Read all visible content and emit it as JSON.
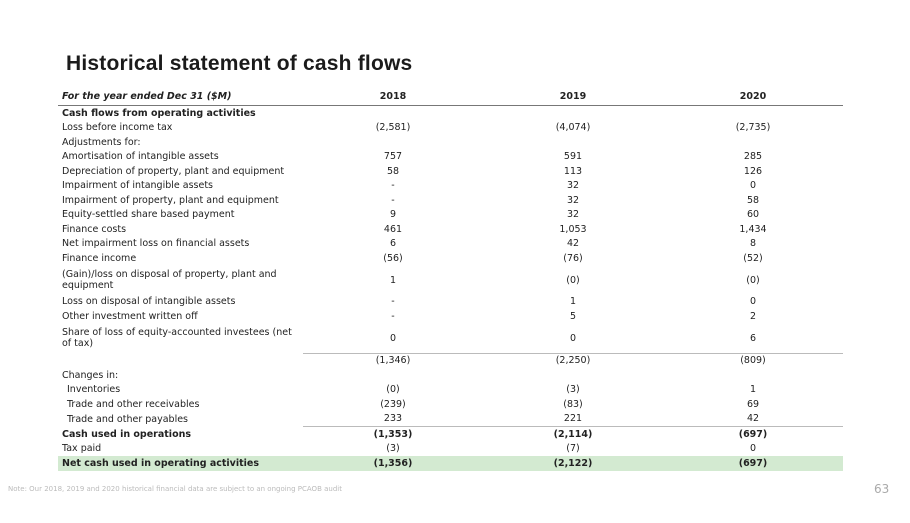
{
  "title": "Historical statement of cash flows",
  "table": {
    "headers": [
      "For the year ended Dec 31 ($M)",
      "2018",
      "2019",
      "2020"
    ],
    "rows": [
      {
        "label": "Cash flows from operating activities",
        "values": [
          "",
          "",
          ""
        ],
        "style": "b"
      },
      {
        "label": "Loss before income tax",
        "values": [
          "(2,581)",
          "(4,074)",
          "(2,735)"
        ]
      },
      {
        "label": "Adjustments for:",
        "values": [
          "",
          "",
          ""
        ]
      },
      {
        "label": "Amortisation of intangible assets",
        "values": [
          "757",
          "591",
          "285"
        ]
      },
      {
        "label": "Depreciation of property, plant and equipment",
        "values": [
          "58",
          "113",
          "126"
        ]
      },
      {
        "label": "Impairment of intangible assets",
        "values": [
          "-",
          "32",
          "0"
        ]
      },
      {
        "label": "Impairment of property, plant and equipment",
        "values": [
          "-",
          "32",
          "58"
        ]
      },
      {
        "label": "Equity-settled share based payment",
        "values": [
          "9",
          "32",
          "60"
        ]
      },
      {
        "label": "Finance costs",
        "values": [
          "461",
          "1,053",
          "1,434"
        ]
      },
      {
        "label": "Net impairment loss on financial assets",
        "values": [
          "6",
          "42",
          "8"
        ]
      },
      {
        "label": "Finance income",
        "values": [
          "(56)",
          "(76)",
          "(52)"
        ]
      },
      {
        "label": "(Gain)/loss on disposal of property, plant and equipment",
        "values": [
          "1",
          "(0)",
          "(0)"
        ],
        "style": "two"
      },
      {
        "label": "Loss on disposal of intangible assets",
        "values": [
          "-",
          "1",
          "0"
        ]
      },
      {
        "label": "Other investment written off",
        "values": [
          "-",
          "5",
          "2"
        ]
      },
      {
        "label": "Share of loss of equity-accounted investees (net of tax)",
        "values": [
          "0",
          "0",
          "6"
        ],
        "style": "two"
      },
      {
        "label": "",
        "values": [
          "(1,346)",
          "(2,250)",
          "(809)"
        ],
        "style": "sub"
      },
      {
        "label": "Changes in:",
        "values": [
          "",
          "",
          ""
        ]
      },
      {
        "label": "Inventories",
        "values": [
          "(0)",
          "(3)",
          "1"
        ],
        "style": "ind"
      },
      {
        "label": "Trade and other receivables",
        "values": [
          "(239)",
          "(83)",
          "69"
        ],
        "style": "ind"
      },
      {
        "label": "Trade and other payables",
        "values": [
          "233",
          "221",
          "42"
        ],
        "style": "ind"
      },
      {
        "label": "Cash used in operations",
        "values": [
          "(1,353)",
          "(2,114)",
          "(697)"
        ],
        "style": "b sub"
      },
      {
        "label": "Tax paid",
        "values": [
          "(3)",
          "(7)",
          "0"
        ]
      },
      {
        "label": "Net cash used in operating activities",
        "values": [
          "(1,356)",
          "(2,122)",
          "(697)"
        ],
        "style": "b hl"
      }
    ]
  },
  "note": "Note: Our 2018, 2019 and 2020 historical financial data are subject to an ongoing PCAOB audit",
  "page_number": "63"
}
